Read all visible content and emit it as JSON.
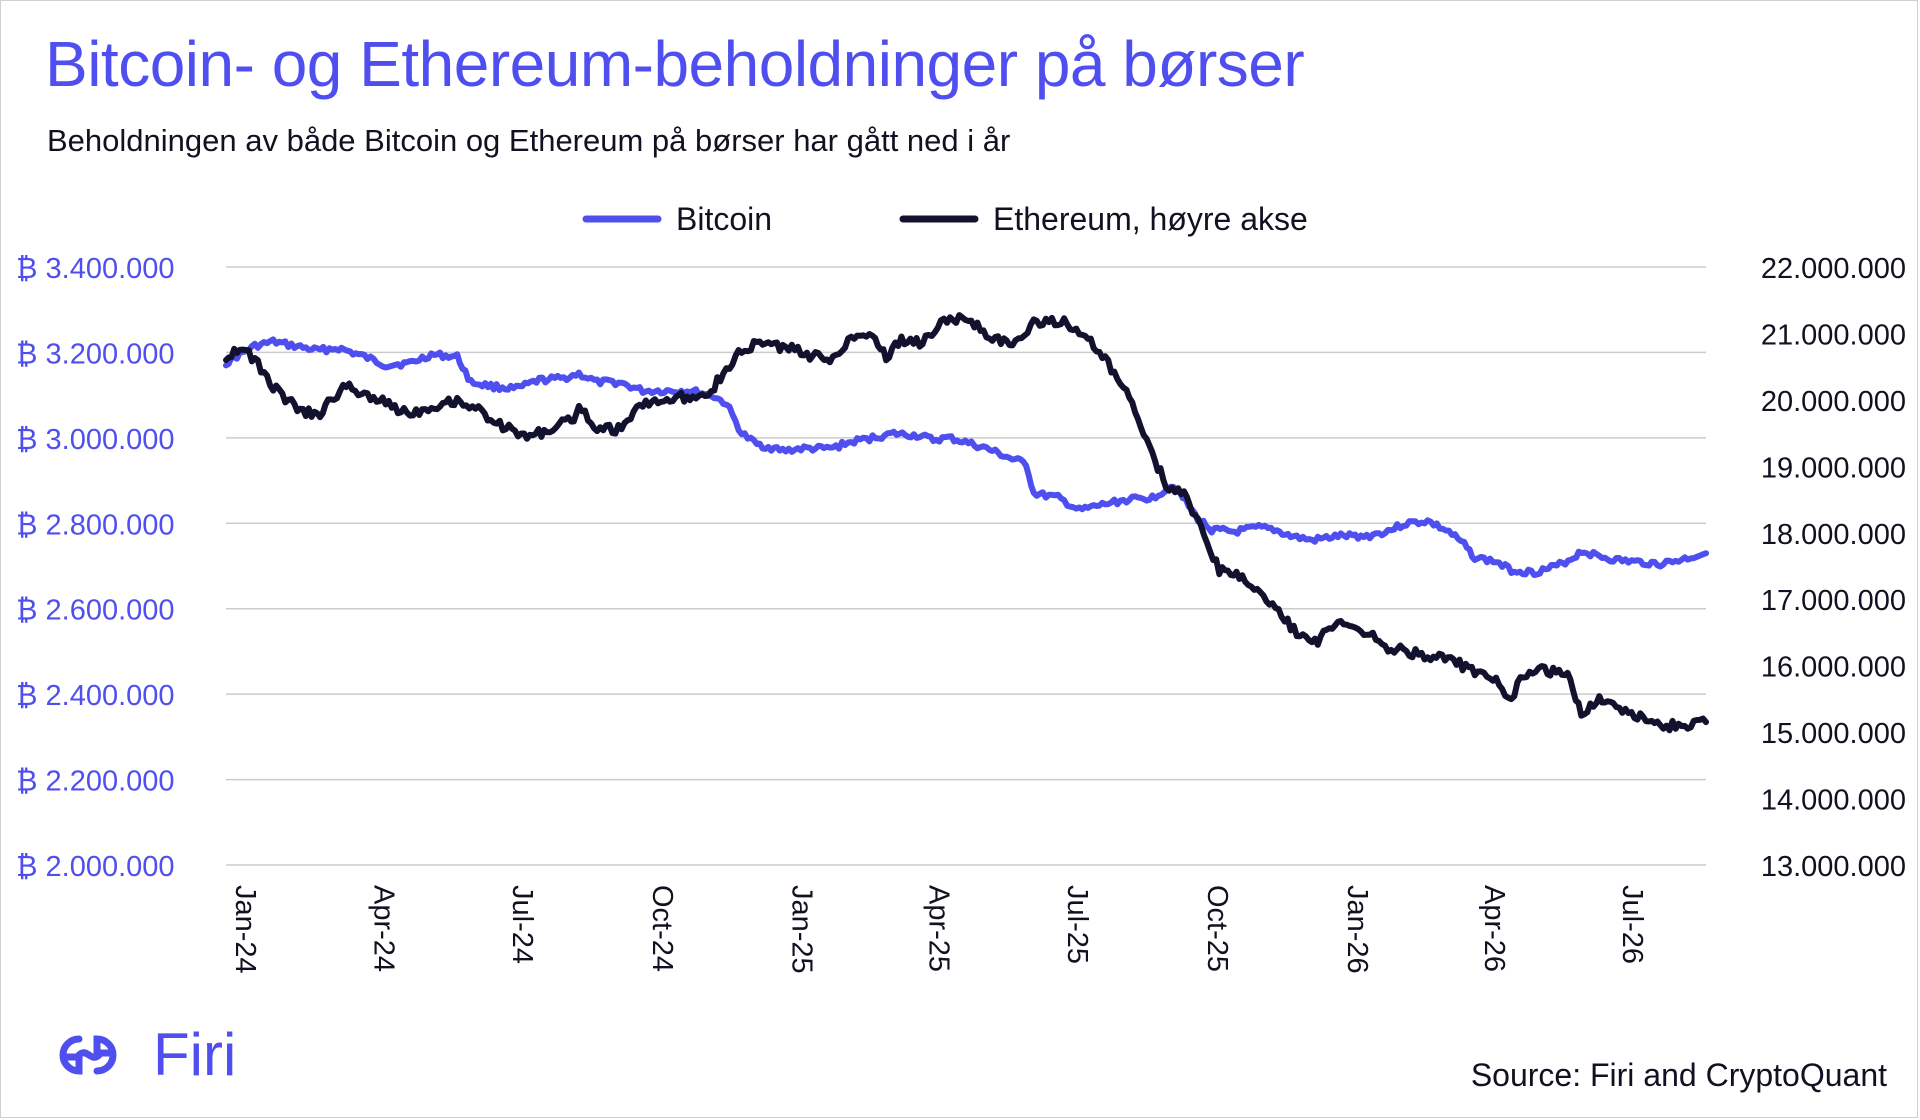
{
  "header": {
    "title": "Bitcoin- og Ethereum-beholdninger på børser",
    "subtitle": "Beholdningen av både Bitcoin og Ethereum på børser har gått ned i år"
  },
  "footer": {
    "logo_text": "Firi",
    "source": "Source: Firi and CryptoQuant"
  },
  "colors": {
    "bitcoin": "#4f4ff0",
    "ethereum": "#12122e",
    "accent": "#4f4ff0",
    "grid": "#cccccc"
  },
  "chart_data": {
    "type": "line",
    "title": "Bitcoin- og Ethereum-beholdninger på børser",
    "subtitle": "Beholdningen av både Bitcoin og Ethereum på børser har gått ned i år",
    "legend": {
      "placement": "top-center",
      "entries": [
        "Bitcoin",
        "Ethereum, høyre akse"
      ]
    },
    "grid": true,
    "x_ticks": [
      "Jan-24",
      "Apr-24",
      "Jul-24",
      "Oct-24",
      "Jan-25",
      "Apr-25",
      "Jul-25",
      "Oct-25",
      "Jan-26",
      "Apr-26",
      "Jul-26"
    ],
    "xlim": [
      "2024-01-01",
      "2026-08-31"
    ],
    "y_left": {
      "ylim": [
        2000000,
        3400000
      ],
      "ticks": [
        "₿ 3.400.000",
        "₿ 3.200.000",
        "₿ 3.000.000",
        "₿ 2.800.000",
        "₿ 2.600.000",
        "₿ 2.400.000",
        "₿ 2.200.000",
        "₿ 2.000.000"
      ]
    },
    "y_right": {
      "ylim": [
        13000000,
        22000000
      ],
      "ticks": [
        "22.000.000",
        "21.000.000",
        "20.000.000",
        "19.000.000",
        "18.000.000",
        "17.000.000",
        "16.000.000",
        "15.000.000",
        "14.000.000",
        "13.000.000"
      ]
    },
    "series": [
      {
        "name": "Bitcoin",
        "axis": "left",
        "color": "#4f4ff0",
        "points": [
          [
            "2024-01-01",
            3175000
          ],
          [
            "2024-01-10",
            3195000
          ],
          [
            "2024-01-20",
            3215000
          ],
          [
            "2024-02-01",
            3225000
          ],
          [
            "2024-02-15",
            3215000
          ],
          [
            "2024-03-01",
            3205000
          ],
          [
            "2024-03-15",
            3210000
          ],
          [
            "2024-04-01",
            3190000
          ],
          [
            "2024-04-15",
            3170000
          ],
          [
            "2024-05-01",
            3175000
          ],
          [
            "2024-05-15",
            3195000
          ],
          [
            "2024-06-01",
            3190000
          ],
          [
            "2024-06-10",
            3130000
          ],
          [
            "2024-06-25",
            3120000
          ],
          [
            "2024-07-10",
            3115000
          ],
          [
            "2024-07-25",
            3135000
          ],
          [
            "2024-08-10",
            3140000
          ],
          [
            "2024-08-20",
            3150000
          ],
          [
            "2024-09-01",
            3130000
          ],
          [
            "2024-09-15",
            3130000
          ],
          [
            "2024-10-01",
            3110000
          ],
          [
            "2024-10-15",
            3110000
          ],
          [
            "2024-11-01",
            3110000
          ],
          [
            "2024-11-15",
            3100000
          ],
          [
            "2024-11-25",
            3080000
          ],
          [
            "2024-12-05",
            3010000
          ],
          [
            "2024-12-15",
            2985000
          ],
          [
            "2025-01-01",
            2970000
          ],
          [
            "2025-01-15",
            2975000
          ],
          [
            "2025-02-01",
            2975000
          ],
          [
            "2025-02-15",
            2990000
          ],
          [
            "2025-03-01",
            3000000
          ],
          [
            "2025-03-15",
            3010000
          ],
          [
            "2025-04-01",
            3005000
          ],
          [
            "2025-04-10",
            2995000
          ],
          [
            "2025-04-20",
            3000000
          ],
          [
            "2025-05-01",
            2990000
          ],
          [
            "2025-05-15",
            2975000
          ],
          [
            "2025-06-01",
            2950000
          ],
          [
            "2025-06-10",
            2940000
          ],
          [
            "2025-06-15",
            2870000
          ],
          [
            "2025-07-01",
            2860000
          ],
          [
            "2025-07-15",
            2830000
          ],
          [
            "2025-08-01",
            2845000
          ],
          [
            "2025-08-15",
            2855000
          ],
          [
            "2025-09-01",
            2860000
          ],
          [
            "2025-09-15",
            2890000
          ],
          [
            "2025-10-01",
            2810000
          ],
          [
            "2025-10-10",
            2785000
          ],
          [
            "2025-10-25",
            2780000
          ],
          [
            "2025-11-10",
            2790000
          ],
          [
            "2025-11-20",
            2785000
          ],
          [
            "2025-12-01",
            2770000
          ],
          [
            "2025-12-15",
            2760000
          ],
          [
            "2026-01-01",
            2770000
          ],
          [
            "2026-01-20",
            2770000
          ],
          [
            "2026-02-01",
            2780000
          ],
          [
            "2026-02-15",
            2800000
          ],
          [
            "2026-03-01",
            2805000
          ],
          [
            "2026-03-15",
            2780000
          ],
          [
            "2026-03-25",
            2750000
          ],
          [
            "2026-04-01",
            2720000
          ],
          [
            "2026-04-15",
            2710000
          ],
          [
            "2026-04-25",
            2690000
          ],
          [
            "2026-05-10",
            2685000
          ],
          [
            "2026-05-25",
            2700000
          ],
          [
            "2026-06-05",
            2720000
          ],
          [
            "2026-06-10",
            2735000
          ],
          [
            "2026-06-20",
            2725000
          ],
          [
            "2026-07-01",
            2715000
          ],
          [
            "2026-07-15",
            2710000
          ],
          [
            "2026-08-01",
            2705000
          ],
          [
            "2026-08-15",
            2715000
          ],
          [
            "2026-08-31",
            2730000
          ]
        ]
      },
      {
        "name": "Ethereum, høyre akse",
        "axis": "right",
        "color": "#12122e",
        "points": [
          [
            "2024-01-01",
            20650000
          ],
          [
            "2024-01-10",
            20800000
          ],
          [
            "2024-01-20",
            20600000
          ],
          [
            "2024-02-01",
            20200000
          ],
          [
            "2024-02-15",
            19900000
          ],
          [
            "2024-03-01",
            19750000
          ],
          [
            "2024-03-10",
            20000000
          ],
          [
            "2024-03-20",
            20200000
          ],
          [
            "2024-04-01",
            20100000
          ],
          [
            "2024-04-15",
            19950000
          ],
          [
            "2024-05-01",
            19800000
          ],
          [
            "2024-05-15",
            19900000
          ],
          [
            "2024-06-01",
            20000000
          ],
          [
            "2024-06-15",
            19850000
          ],
          [
            "2024-07-01",
            19600000
          ],
          [
            "2024-07-15",
            19450000
          ],
          [
            "2024-08-01",
            19550000
          ],
          [
            "2024-08-15",
            19700000
          ],
          [
            "2024-08-20",
            19850000
          ],
          [
            "2024-09-01",
            19600000
          ],
          [
            "2024-09-15",
            19550000
          ],
          [
            "2024-10-01",
            19950000
          ],
          [
            "2024-10-15",
            20000000
          ],
          [
            "2024-11-01",
            20050000
          ],
          [
            "2024-11-15",
            20150000
          ],
          [
            "2024-12-01",
            20650000
          ],
          [
            "2024-12-15",
            20850000
          ],
          [
            "2025-01-01",
            20800000
          ],
          [
            "2025-01-15",
            20700000
          ],
          [
            "2025-02-01",
            20600000
          ],
          [
            "2025-02-15",
            20950000
          ],
          [
            "2025-03-01",
            21000000
          ],
          [
            "2025-03-10",
            20650000
          ],
          [
            "2025-03-20",
            20900000
          ],
          [
            "2025-04-01",
            20850000
          ],
          [
            "2025-04-15",
            21150000
          ],
          [
            "2025-05-01",
            21250000
          ],
          [
            "2025-05-15",
            21000000
          ],
          [
            "2025-06-01",
            20800000
          ],
          [
            "2025-06-15",
            21150000
          ],
          [
            "2025-07-01",
            21200000
          ],
          [
            "2025-07-15",
            21050000
          ],
          [
            "2025-08-01",
            20600000
          ],
          [
            "2025-08-15",
            20100000
          ],
          [
            "2025-09-01",
            19200000
          ],
          [
            "2025-09-10",
            18700000
          ],
          [
            "2025-09-20",
            18650000
          ],
          [
            "2025-10-01",
            18150000
          ],
          [
            "2025-10-15",
            17450000
          ],
          [
            "2025-11-01",
            17300000
          ],
          [
            "2025-11-15",
            17000000
          ],
          [
            "2025-12-01",
            16600000
          ],
          [
            "2025-12-15",
            16300000
          ],
          [
            "2026-01-01",
            16700000
          ],
          [
            "2026-01-20",
            16500000
          ],
          [
            "2026-02-01",
            16300000
          ],
          [
            "2026-02-15",
            16200000
          ],
          [
            "2026-03-01",
            16150000
          ],
          [
            "2026-03-20",
            16050000
          ],
          [
            "2026-04-01",
            15900000
          ],
          [
            "2026-04-15",
            15750000
          ],
          [
            "2026-04-25",
            15450000
          ],
          [
            "2026-05-01",
            15800000
          ],
          [
            "2026-05-15",
            15950000
          ],
          [
            "2026-06-01",
            15850000
          ],
          [
            "2026-06-10",
            15250000
          ],
          [
            "2026-06-20",
            15500000
          ],
          [
            "2026-07-01",
            15450000
          ],
          [
            "2026-07-15",
            15250000
          ],
          [
            "2026-08-01",
            15100000
          ],
          [
            "2026-08-15",
            15100000
          ],
          [
            "2026-08-31",
            15150000
          ]
        ]
      }
    ]
  }
}
